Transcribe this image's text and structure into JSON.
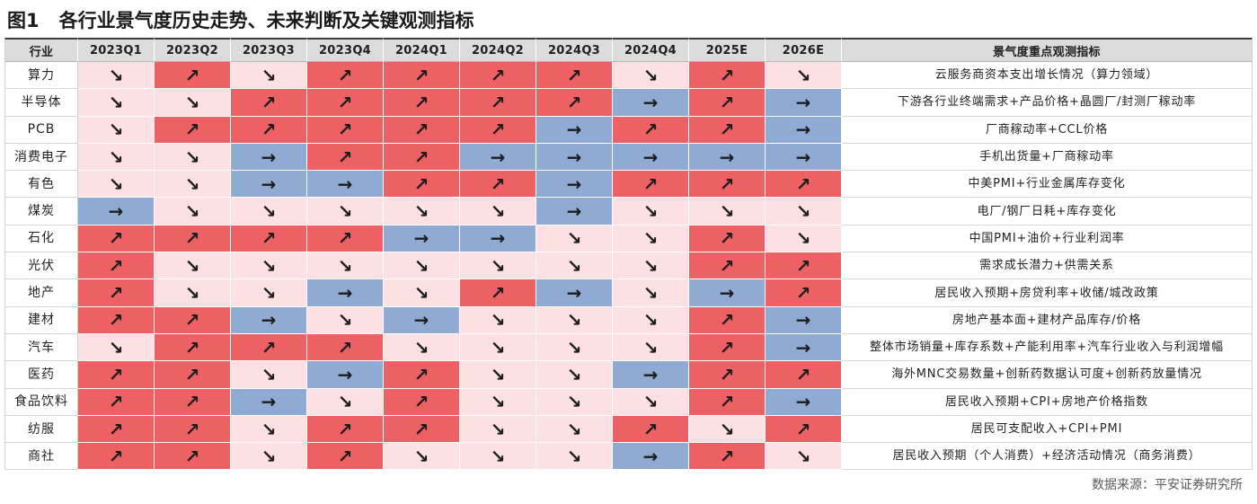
{
  "chart_data": {
    "type": "table",
    "figure_label": "图1",
    "title": "各行业景气度历史走势、未来判断及关键观测指标",
    "source": "数据来源：平安证券研究所",
    "columns": [
      "行业",
      "2023Q1",
      "2023Q2",
      "2023Q3",
      "2023Q4",
      "2024Q1",
      "2024Q2",
      "2024Q3",
      "2024Q4",
      "2025E",
      "2026E",
      "景气度重点观测指标"
    ],
    "cell_colors": {
      "↗": "#ed6164",
      "↘": "#fde0e4",
      "→": "#8fabd4"
    },
    "header_color": "#dcdcdc",
    "rows": [
      {
        "industry": "算力",
        "values": [
          "↘",
          "↗",
          "↘",
          "↗",
          "↗",
          "↗",
          "↗",
          "↘",
          "↗",
          "↘"
        ],
        "indicator": "云服务商资本支出增长情况（算力领域）"
      },
      {
        "industry": "半导体",
        "values": [
          "↘",
          "↘",
          "↗",
          "↗",
          "↗",
          "↗",
          "↗",
          "→",
          "↗",
          "→"
        ],
        "indicator": "下游各行业终端需求+产品价格+晶圆厂/封测厂稼动率"
      },
      {
        "industry": "PCB",
        "values": [
          "↘",
          "↗",
          "↗",
          "↗",
          "↗",
          "↗",
          "→",
          "↗",
          "↗",
          "→"
        ],
        "indicator": "厂商稼动率+CCL价格"
      },
      {
        "industry": "消费电子",
        "values": [
          "↘",
          "↘",
          "→",
          "↗",
          "↗",
          "→",
          "→",
          "→",
          "→",
          "→"
        ],
        "indicator": "手机出货量+厂商稼动率"
      },
      {
        "industry": "有色",
        "values": [
          "↘",
          "↘",
          "→",
          "→",
          "↗",
          "↗",
          "→",
          "↗",
          "↗",
          "↗"
        ],
        "indicator": "中美PMI+行业金属库存变化"
      },
      {
        "industry": "煤炭",
        "values": [
          "→",
          "↘",
          "↘",
          "↘",
          "↘",
          "↘",
          "→",
          "↘",
          "↘",
          "↘"
        ],
        "indicator": "电厂/钢厂日耗+库存变化"
      },
      {
        "industry": "石化",
        "values": [
          "↗",
          "↗",
          "↗",
          "↗",
          "→",
          "→",
          "↘",
          "↘",
          "↗",
          "↘"
        ],
        "indicator": "中国PMI+油价+行业利润率"
      },
      {
        "industry": "光伏",
        "values": [
          "↗",
          "↘",
          "↘",
          "↘",
          "↘",
          "↘",
          "↘",
          "↘",
          "↗",
          "↗"
        ],
        "indicator": "需求成长潜力+供需关系"
      },
      {
        "industry": "地产",
        "values": [
          "↗",
          "↘",
          "↘",
          "→",
          "↘",
          "↗",
          "→",
          "↘",
          "→",
          "↗"
        ],
        "indicator": "居民收入预期+房贷利率+收储/城改政策"
      },
      {
        "industry": "建材",
        "values": [
          "↗",
          "↗",
          "→",
          "↘",
          "→",
          "↘",
          "↘",
          "↘",
          "↗",
          "→"
        ],
        "indicator": "房地产基本面+建材产品库存/价格"
      },
      {
        "industry": "汽车",
        "values": [
          "↘",
          "↗",
          "↗",
          "↗",
          "↘",
          "↘",
          "↘",
          "↘",
          "↗",
          "→"
        ],
        "indicator": "整体市场销量+库存系数+产能利用率+汽车行业收入与利润增幅"
      },
      {
        "industry": "医药",
        "values": [
          "↗",
          "↗",
          "↘",
          "→",
          "↗",
          "↘",
          "↘",
          "→",
          "↗",
          "↗"
        ],
        "indicator": "海外MNC交易数量+创新药数据认可度+创新药放量情况"
      },
      {
        "industry": "食品饮料",
        "values": [
          "↗",
          "↗",
          "→",
          "↘",
          "↗",
          "↘",
          "↘",
          "↘",
          "↗",
          "→"
        ],
        "indicator": "居民收入预期+CPI+房地产价格指数"
      },
      {
        "industry": "纺服",
        "values": [
          "↗",
          "↗",
          "↘",
          "↗",
          "↗",
          "↘",
          "↘",
          "↗",
          "↘",
          "↗"
        ],
        "indicator": "居民可支配收入+CPI+PMI"
      },
      {
        "industry": "商社",
        "values": [
          "↗",
          "↗",
          "↘",
          "↗",
          "↘",
          "↘",
          "↘",
          "→",
          "↗",
          "↘"
        ],
        "indicator": "居民收入预期（个人消费）+经济活动情况（商务消费）"
      }
    ]
  }
}
